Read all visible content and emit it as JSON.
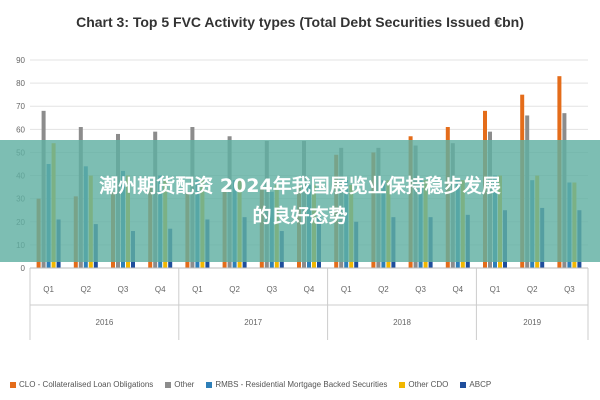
{
  "chart_data": {
    "type": "bar",
    "title": "Chart 3: Top 5 FVC Activity types (Total Debt Securities Issued €bn)",
    "categories": [
      "Q1",
      "Q2",
      "Q3",
      "Q4",
      "Q1",
      "Q2",
      "Q3",
      "Q4",
      "Q1",
      "Q2",
      "Q3",
      "Q4",
      "Q1",
      "Q2",
      "Q3"
    ],
    "groups": [
      {
        "label": "2016",
        "count": 4
      },
      {
        "label": "2017",
        "count": 4
      },
      {
        "label": "2018",
        "count": 4
      },
      {
        "label": "2019",
        "count": 3
      }
    ],
    "ylim": [
      0,
      90
    ],
    "yticks": [
      0,
      10,
      20,
      30,
      40,
      50,
      60,
      70,
      80,
      90
    ],
    "grid": true,
    "legend_position": "bottom",
    "series": [
      {
        "name": "CLO - Collateralised Loan Obligations",
        "color": "#e46c1a",
        "values": [
          30,
          31,
          33,
          35,
          33,
          34,
          34,
          36,
          49,
          50,
          57,
          61,
          68,
          75,
          83
        ]
      },
      {
        "name": "Other",
        "color": "#8c8c8c",
        "values": [
          68,
          61,
          58,
          59,
          61,
          57,
          55,
          55,
          52,
          52,
          53,
          54,
          59,
          66,
          67
        ]
      },
      {
        "name": "RMBS - Residential Mortgage Backed Securities",
        "color": "#2e7fb8",
        "values": [
          45,
          44,
          42,
          40,
          38,
          38,
          33,
          36,
          38,
          38,
          39,
          38,
          40,
          38,
          37
        ]
      },
      {
        "name": "Other CDO",
        "color": "#f2b700",
        "values": [
          54,
          40,
          40,
          38,
          38,
          38,
          36,
          36,
          36,
          38,
          38,
          38,
          40,
          40,
          37
        ]
      },
      {
        "name": "ABCP",
        "color": "#1f4e9c",
        "values": [
          21,
          19,
          16,
          17,
          21,
          22,
          16,
          22,
          20,
          22,
          22,
          23,
          25,
          26,
          25
        ]
      }
    ]
  },
  "overlay": {
    "line1": "潮州期货配资 2024年我国展览业保持稳步发展",
    "line2": "的良好态势"
  }
}
